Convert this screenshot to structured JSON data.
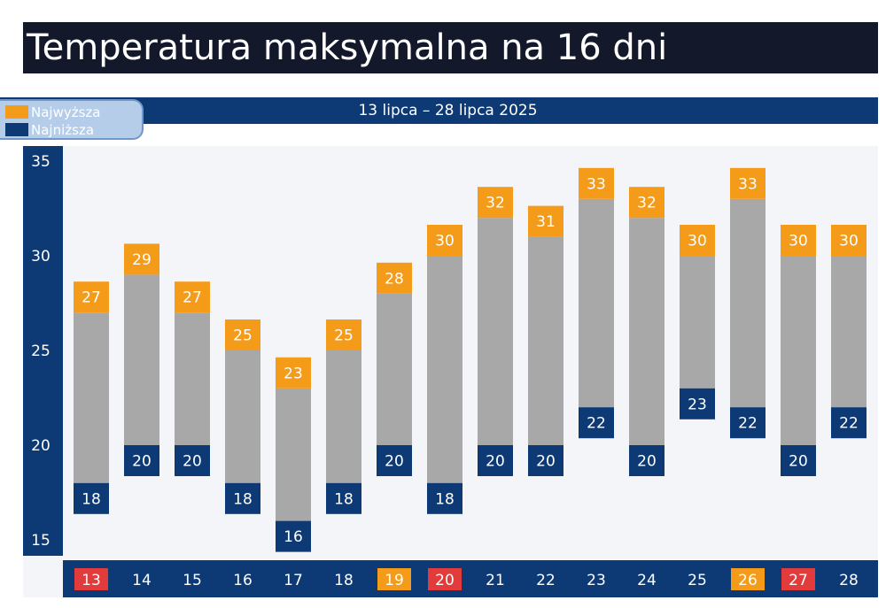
{
  "title": "Temperatura maksymalna na 16 dni",
  "date_range": "13 lipca – 28 lipca 2025",
  "legend": [
    {
      "label": "Najwyższa",
      "color": "#f59b1a"
    },
    {
      "label": "Najniższa",
      "color": "#0d3a74"
    }
  ],
  "colors": {
    "high": "#f59b1a",
    "low": "#0d3a74",
    "bar": "#a8a8a8",
    "weekend_red": "#e23b3b",
    "weekend_orange": "#f59b1a"
  },
  "chart_data": {
    "type": "bar",
    "categories": [
      "13",
      "14",
      "15",
      "16",
      "17",
      "18",
      "19",
      "20",
      "21",
      "22",
      "23",
      "24",
      "25",
      "26",
      "27",
      "28"
    ],
    "category_highlight": [
      "red",
      "none",
      "none",
      "none",
      "none",
      "none",
      "orange",
      "red",
      "none",
      "none",
      "none",
      "none",
      "none",
      "orange",
      "red",
      "none"
    ],
    "series": [
      {
        "name": "Najwyższa",
        "values": [
          27,
          29,
          27,
          25,
          23,
          25,
          28,
          30,
          32,
          31,
          33,
          32,
          30,
          33,
          30,
          30
        ]
      },
      {
        "name": "Najniższa",
        "values": [
          18,
          20,
          20,
          18,
          16,
          18,
          20,
          18,
          20,
          20,
          22,
          20,
          23,
          22,
          20,
          22
        ]
      }
    ],
    "ylim": [
      15,
      35
    ],
    "yticks": [
      15,
      20,
      25,
      30,
      35
    ],
    "xlabel": "",
    "ylabel": ""
  }
}
